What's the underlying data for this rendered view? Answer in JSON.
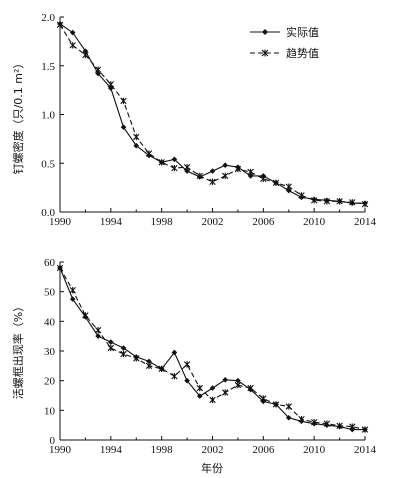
{
  "chart_data": [
    {
      "type": "line",
      "ylabel": "钉螺密度（只/0.1 m²）",
      "ylim": [
        0,
        2.0
      ],
      "yticks": [
        "0.0",
        "0.5",
        "1.0",
        "1.5",
        "2.0"
      ],
      "xlim": [
        1990,
        2014
      ],
      "xticks": [
        "1990",
        "1994",
        "1998",
        "2002",
        "2006",
        "2010",
        "2014"
      ],
      "legend": {
        "placement": "top-right",
        "entries": [
          "实际值",
          "趋势值"
        ]
      },
      "x": [
        1990,
        1991,
        1992,
        1993,
        1994,
        1995,
        1996,
        1997,
        1998,
        1999,
        2000,
        2001,
        2002,
        2003,
        2004,
        2005,
        2006,
        2007,
        2008,
        2009,
        2010,
        2011,
        2012,
        2013,
        2014
      ],
      "series": [
        {
          "name": "实际值",
          "values": [
            1.93,
            1.84,
            1.65,
            1.42,
            1.27,
            0.87,
            0.68,
            0.58,
            0.51,
            0.54,
            0.42,
            0.36,
            0.42,
            0.48,
            0.46,
            0.37,
            0.37,
            0.3,
            0.22,
            0.15,
            0.13,
            0.12,
            0.11,
            0.09,
            0.09
          ]
        },
        {
          "name": "趋势值",
          "values": [
            1.92,
            1.71,
            1.61,
            1.46,
            1.31,
            1.14,
            0.77,
            0.6,
            0.51,
            0.45,
            0.46,
            0.37,
            0.31,
            0.37,
            0.44,
            0.41,
            0.34,
            0.3,
            0.26,
            0.17,
            0.12,
            0.11,
            0.11,
            0.1,
            0.08
          ]
        }
      ]
    },
    {
      "type": "line",
      "ylabel": "活螺框出现率（%）",
      "xlabel": "年份",
      "ylim": [
        0,
        60
      ],
      "yticks": [
        "0",
        "10",
        "20",
        "30",
        "40",
        "50",
        "60"
      ],
      "xlim": [
        1990,
        2014
      ],
      "xticks": [
        "1990",
        "1994",
        "1998",
        "2002",
        "2006",
        "2010",
        "2014"
      ],
      "x": [
        1990,
        1991,
        1992,
        1993,
        1994,
        1995,
        1996,
        1997,
        1998,
        1999,
        2000,
        2001,
        2002,
        2003,
        2004,
        2005,
        2006,
        2007,
        2008,
        2009,
        2010,
        2011,
        2012,
        2013,
        2014
      ],
      "series": [
        {
          "name": "实际值",
          "values": [
            58,
            47.5,
            41.5,
            35,
            33,
            31,
            28,
            26.5,
            24,
            29.5,
            20,
            14.8,
            17.5,
            20.3,
            20,
            17,
            13,
            12,
            7.5,
            6.3,
            5.5,
            5,
            4.5,
            3.5,
            3.5
          ]
        },
        {
          "name": "趋势值",
          "values": [
            58,
            50.5,
            42,
            37,
            31,
            29,
            27.5,
            25,
            24,
            21.5,
            25.5,
            17.5,
            13.5,
            16,
            18.5,
            17.5,
            14,
            12,
            11.3,
            7,
            6,
            5.5,
            4.8,
            4.5,
            3.5
          ]
        }
      ]
    }
  ]
}
